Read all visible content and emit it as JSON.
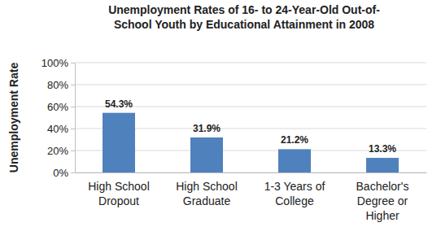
{
  "chart_data": {
    "type": "bar",
    "title": "Unemployment Rates of 16- to 24-Year-Old Out-of-\nSchool Youth by Educational Attainment in 2008",
    "y_label": "Unemployment Rate",
    "categories": [
      "High School Dropout",
      "High School Graduate",
      "1-3 Years of College",
      "Bachelor's Degree or Higher"
    ],
    "values": [
      54.3,
      31.9,
      21.2,
      13.3
    ],
    "value_labels": [
      "54.3%",
      "31.9%",
      "21.2%",
      "13.3%"
    ],
    "data_labels": true,
    "color": "#4f81bd",
    "ylim": [
      0,
      100
    ],
    "yticks": [
      {
        "value": 0,
        "label": "0%"
      },
      {
        "value": 20,
        "label": "20%"
      },
      {
        "value": 40,
        "label": "40%"
      },
      {
        "value": 60,
        "label": "60%"
      },
      {
        "value": 80,
        "label": "80%"
      },
      {
        "value": 100,
        "label": "100%"
      }
    ],
    "grid": true
  }
}
